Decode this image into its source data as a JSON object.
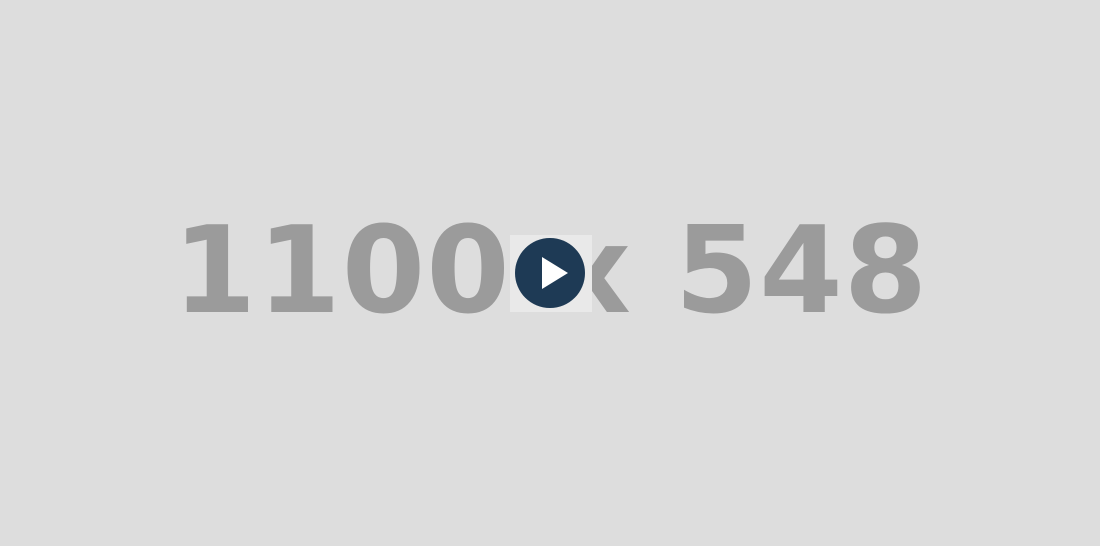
{
  "placeholder": {
    "text": "1100 x 548"
  },
  "video": {
    "play_icon": "play-icon",
    "colors": {
      "background": "#dddddd",
      "placeholder_text": "#9b9b9b",
      "play_circle": "#1e3a55",
      "play_triangle": "#ffffff",
      "play_backdrop": "#e9e9e9"
    }
  }
}
